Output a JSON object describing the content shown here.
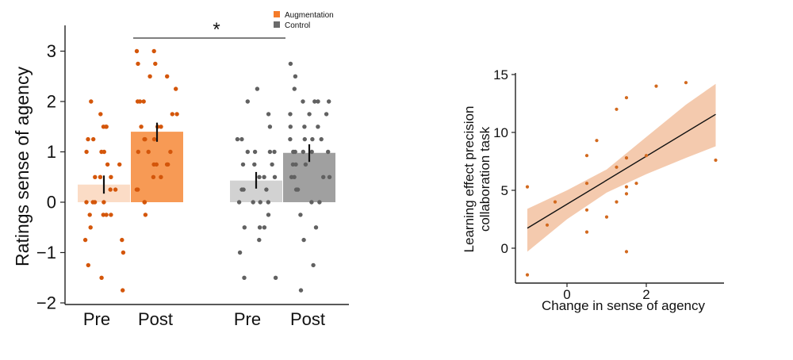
{
  "chart_data": [
    {
      "type": "bar",
      "ylabel": "Ratings sense of agency",
      "ylim": [
        -2,
        3.5
      ],
      "yticks": [
        -2,
        -1,
        0,
        1,
        2,
        3
      ],
      "ytick_labels": [
        "−2",
        "−1",
        "0",
        "1",
        "2",
        "3"
      ],
      "grid": false,
      "legend_position": "top-right",
      "categories": [
        "Pre",
        "Post",
        "Pre",
        "Post"
      ],
      "groups": [
        "Augmentation",
        "Augmentation",
        "Control",
        "Control"
      ],
      "significance_label": "*",
      "series": [
        {
          "name": "Augmentation",
          "color": "#f79a55",
          "pre": {
            "mean": 0.35,
            "error": [
              0.17,
              0.53
            ],
            "color": "#fbdcc6",
            "points": [
              1.5,
              1.5,
              1.25,
              1.25,
              1.0,
              1.0,
              1.0,
              0.75,
              0.75,
              0.5,
              0.5,
              0.25,
              0.25,
              0.0,
              0.0,
              0.0,
              -0.25,
              -0.25,
              -0.25,
              -0.25,
              -0.5,
              -0.75,
              -0.75,
              -1.0,
              -1.25,
              -1.5,
              -1.75,
              2.0,
              1.75,
              1.5,
              0.5,
              0.0
            ]
          },
          "post": {
            "mean": 1.4,
            "error": [
              1.2,
              1.58
            ],
            "color": "#f79a55",
            "points": [
              3.0,
              3.0,
              2.75,
              2.75,
              2.5,
              2.5,
              2.25,
              2.0,
              2.0,
              2.0,
              1.75,
              1.75,
              1.5,
              1.5,
              1.5,
              1.25,
              1.25,
              1.0,
              1.0,
              1.0,
              0.75,
              0.75,
              0.75,
              0.5,
              0.5,
              0.25,
              0.25,
              0.0,
              0.0,
              -0.25,
              1.25,
              0.75
            ]
          }
        },
        {
          "name": "Control",
          "color": "#a0a0a0",
          "pre": {
            "mean": 0.43,
            "error": [
              0.27,
              0.6
            ],
            "color": "#d2d2d2",
            "points": [
              2.25,
              2.0,
              1.75,
              1.5,
              1.25,
              1.25,
              1.0,
              1.0,
              1.0,
              1.0,
              0.75,
              0.75,
              0.5,
              0.5,
              0.5,
              0.25,
              0.25,
              0.0,
              0.0,
              0.0,
              0.0,
              -0.25,
              -0.5,
              -0.5,
              -0.5,
              -0.75,
              -1.0,
              -1.5,
              -1.5,
              0.75,
              0.25
            ]
          },
          "post": {
            "mean": 0.98,
            "error": [
              0.8,
              1.15
            ],
            "color": "#a0a0a0",
            "points": [
              2.75,
              2.5,
              2.25,
              2.0,
              2.0,
              2.0,
              2.0,
              1.75,
              1.75,
              1.5,
              1.5,
              1.5,
              1.25,
              1.25,
              1.25,
              1.0,
              1.0,
              1.0,
              1.0,
              1.0,
              0.75,
              0.75,
              0.75,
              0.5,
              0.5,
              0.5,
              0.25,
              0.25,
              0.0,
              0.0,
              -0.25,
              -0.5,
              -0.75,
              -1.25,
              -1.75,
              1.75,
              1.25,
              0.5
            ]
          }
        }
      ],
      "legend": [
        {
          "label": "Augmentation",
          "color": "#f57c2a"
        },
        {
          "label": "Control",
          "color": "#6b6b6b"
        }
      ]
    },
    {
      "type": "scatter",
      "xlabel": "Change in sense of agency",
      "ylabel_lines": [
        "Learning effect precision",
        "collaboration task"
      ],
      "xlim": [
        -1.1,
        3.8
      ],
      "ylim": [
        -3,
        15.5
      ],
      "xticks": [
        0,
        2
      ],
      "yticks": [
        0,
        5,
        10,
        15
      ],
      "point_color": "#d2691e",
      "points": [
        [
          -1.0,
          5.3
        ],
        [
          -1.0,
          -2.3
        ],
        [
          -0.3,
          4.0
        ],
        [
          -0.5,
          2.0
        ],
        [
          0.5,
          5.6
        ],
        [
          0.5,
          3.3
        ],
        [
          0.5,
          1.4
        ],
        [
          0.5,
          8.0
        ],
        [
          0.75,
          9.3
        ],
        [
          1.0,
          2.7
        ],
        [
          1.25,
          4.0
        ],
        [
          1.25,
          7.0
        ],
        [
          1.25,
          12.0
        ],
        [
          1.5,
          13.0
        ],
        [
          1.5,
          7.8
        ],
        [
          1.5,
          5.3
        ],
        [
          1.5,
          4.7
        ],
        [
          1.5,
          -0.3
        ],
        [
          1.75,
          5.6
        ],
        [
          2.0,
          8.0
        ],
        [
          2.25,
          14.0
        ],
        [
          3.0,
          14.3
        ],
        [
          3.75,
          7.6
        ]
      ],
      "regression": {
        "slope": 2.07,
        "intercept": 3.8,
        "x_range": [
          -1.0,
          3.75
        ]
      },
      "ci_band": {
        "x": [
          -1.0,
          0.0,
          1.0,
          2.0,
          3.0,
          3.75
        ],
        "lower": [
          -0.3,
          2.5,
          4.8,
          6.4,
          7.8,
          8.8
        ],
        "upper": [
          3.4,
          5.0,
          6.8,
          9.6,
          12.4,
          14.2
        ]
      }
    }
  ]
}
